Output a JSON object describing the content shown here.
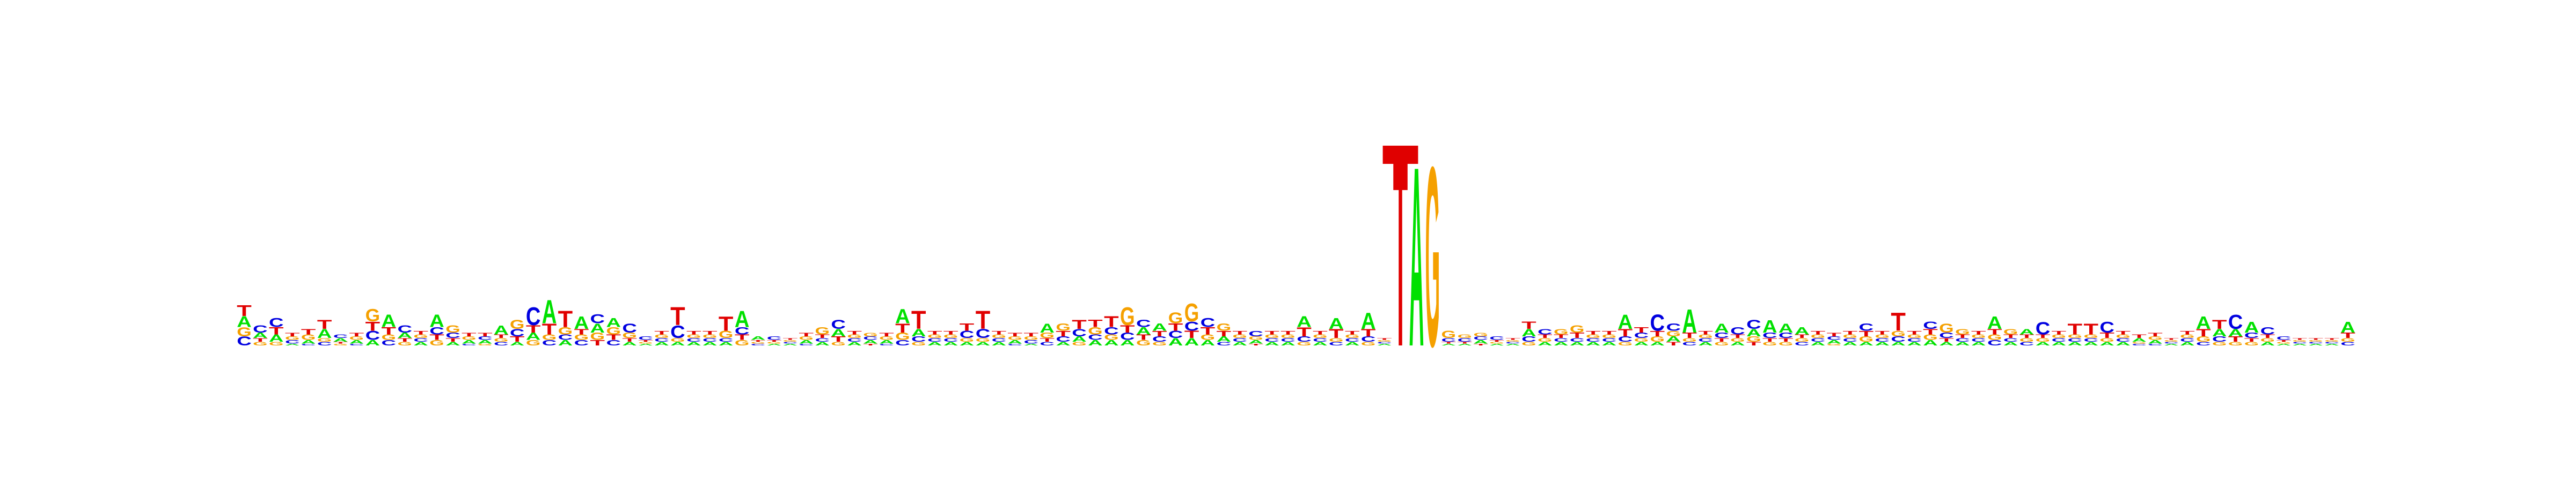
{
  "chart_data": {
    "type": "sequence_logo",
    "title": "",
    "xlabel": "",
    "ylabel": "",
    "alphabet": [
      "A",
      "C",
      "G",
      "T"
    ],
    "colors": {
      "A": "#00e000",
      "C": "#0000e0",
      "G": "#f5a000",
      "T": "#e00000"
    },
    "ylim_bits": [
      0,
      2
    ],
    "positions": [
      {
        "A": 0.06,
        "C": 0.05,
        "G": 0.05,
        "T": 0.06
      },
      {
        "A": 0.03,
        "C": 0.04,
        "G": 0.02,
        "T": 0.02
      },
      {
        "A": 0.04,
        "C": 0.05,
        "G": 0.02,
        "T": 0.04
      },
      {
        "A": 0.01,
        "C": 0.02,
        "G": 0.02,
        "T": 0.02
      },
      {
        "A": 0.02,
        "C": 0.01,
        "G": 0.03,
        "T": 0.03
      },
      {
        "A": 0.05,
        "C": 0.02,
        "G": 0.02,
        "T": 0.05
      },
      {
        "A": 0.02,
        "C": 0.02,
        "G": 0.01,
        "T": 0.01
      },
      {
        "A": 0.02,
        "C": 0.01,
        "G": 0.02,
        "T": 0.02
      },
      {
        "A": 0.03,
        "C": 0.05,
        "G": 0.07,
        "T": 0.05
      },
      {
        "A": 0.07,
        "C": 0.03,
        "G": 0.03,
        "T": 0.04
      },
      {
        "A": 0.03,
        "C": 0.04,
        "G": 0.02,
        "T": 0.02
      },
      {
        "A": 0.02,
        "C": 0.02,
        "G": 0.02,
        "T": 0.02
      },
      {
        "A": 0.07,
        "C": 0.04,
        "G": 0.03,
        "T": 0.03
      },
      {
        "A": 0.02,
        "C": 0.03,
        "G": 0.04,
        "T": 0.02
      },
      {
        "A": 0.02,
        "C": 0.01,
        "G": 0.02,
        "T": 0.02
      },
      {
        "A": 0.02,
        "C": 0.02,
        "G": 0.01,
        "T": 0.02
      },
      {
        "A": 0.05,
        "C": 0.02,
        "G": 0.02,
        "T": 0.02
      },
      {
        "A": 0.02,
        "C": 0.04,
        "G": 0.05,
        "T": 0.03
      },
      {
        "A": 0.04,
        "C": 0.1,
        "G": 0.03,
        "T": 0.04
      },
      {
        "A": 0.13,
        "C": 0.03,
        "G": 0.03,
        "T": 0.06
      },
      {
        "A": 0.03,
        "C": 0.03,
        "G": 0.04,
        "T": 0.09
      },
      {
        "A": 0.07,
        "C": 0.03,
        "G": 0.03,
        "T": 0.03
      },
      {
        "A": 0.05,
        "C": 0.05,
        "G": 0.04,
        "T": 0.03
      },
      {
        "A": 0.05,
        "C": 0.03,
        "G": 0.04,
        "T": 0.03
      },
      {
        "A": 0.02,
        "C": 0.05,
        "G": 0.03,
        "T": 0.02
      },
      {
        "A": 0.01,
        "C": 0.02,
        "G": 0.01,
        "T": 0.01
      },
      {
        "A": 0.02,
        "C": 0.02,
        "G": 0.02,
        "T": 0.02
      },
      {
        "A": 0.02,
        "C": 0.07,
        "G": 0.02,
        "T": 0.1
      },
      {
        "A": 0.02,
        "C": 0.02,
        "G": 0.02,
        "T": 0.02
      },
      {
        "A": 0.02,
        "C": 0.02,
        "G": 0.02,
        "T": 0.02
      },
      {
        "A": 0.02,
        "C": 0.02,
        "G": 0.04,
        "T": 0.08
      },
      {
        "A": 0.09,
        "C": 0.04,
        "G": 0.03,
        "T": 0.03
      },
      {
        "A": 0.02,
        "C": 0.01,
        "G": 0.01,
        "T": 0.01
      },
      {
        "A": 0.01,
        "C": 0.02,
        "G": 0.01,
        "T": 0.01
      },
      {
        "A": 0.01,
        "C": 0.01,
        "G": 0.01,
        "T": 0.01
      },
      {
        "A": 0.02,
        "C": 0.01,
        "G": 0.02,
        "T": 0.02
      },
      {
        "A": 0.02,
        "C": 0.02,
        "G": 0.04,
        "T": 0.02
      },
      {
        "A": 0.04,
        "C": 0.05,
        "G": 0.02,
        "T": 0.03
      },
      {
        "A": 0.02,
        "C": 0.02,
        "G": 0.02,
        "T": 0.02
      },
      {
        "A": 0.02,
        "C": 0.02,
        "G": 0.02,
        "T": 0.01
      },
      {
        "A": 0.02,
        "C": 0.01,
        "G": 0.02,
        "T": 0.02
      },
      {
        "A": 0.08,
        "C": 0.03,
        "G": 0.04,
        "T": 0.05
      },
      {
        "A": 0.04,
        "C": 0.03,
        "G": 0.02,
        "T": 0.1
      },
      {
        "A": 0.02,
        "C": 0.02,
        "G": 0.02,
        "T": 0.02
      },
      {
        "A": 0.02,
        "C": 0.02,
        "G": 0.02,
        "T": 0.02
      },
      {
        "A": 0.02,
        "C": 0.04,
        "G": 0.02,
        "T": 0.04
      },
      {
        "A": 0.02,
        "C": 0.05,
        "G": 0.02,
        "T": 0.1
      },
      {
        "A": 0.02,
        "C": 0.02,
        "G": 0.02,
        "T": 0.02
      },
      {
        "A": 0.02,
        "C": 0.01,
        "G": 0.02,
        "T": 0.02
      },
      {
        "A": 0.01,
        "C": 0.02,
        "G": 0.02,
        "T": 0.02
      },
      {
        "A": 0.05,
        "C": 0.02,
        "G": 0.03,
        "T": 0.02
      },
      {
        "A": 0.02,
        "C": 0.03,
        "G": 0.04,
        "T": 0.03
      },
      {
        "A": 0.03,
        "C": 0.04,
        "G": 0.02,
        "T": 0.05
      },
      {
        "A": 0.03,
        "C": 0.03,
        "G": 0.04,
        "T": 0.04
      },
      {
        "A": 0.03,
        "C": 0.04,
        "G": 0.03,
        "T": 0.06
      },
      {
        "A": 0.03,
        "C": 0.04,
        "G": 0.1,
        "T": 0.04
      },
      {
        "A": 0.04,
        "C": 0.04,
        "G": 0.03,
        "T": 0.03
      },
      {
        "A": 0.04,
        "C": 0.03,
        "G": 0.02,
        "T": 0.03
      },
      {
        "A": 0.04,
        "C": 0.04,
        "G": 0.06,
        "T": 0.04
      },
      {
        "A": 0.04,
        "C": 0.05,
        "G": 0.1,
        "T": 0.04
      },
      {
        "A": 0.03,
        "C": 0.05,
        "G": 0.03,
        "T": 0.04
      },
      {
        "A": 0.03,
        "C": 0.02,
        "G": 0.04,
        "T": 0.03
      },
      {
        "A": 0.02,
        "C": 0.02,
        "G": 0.02,
        "T": 0.02
      },
      {
        "A": 0.02,
        "C": 0.03,
        "G": 0.02,
        "T": 0.01
      },
      {
        "A": 0.02,
        "C": 0.02,
        "G": 0.02,
        "T": 0.02
      },
      {
        "A": 0.02,
        "C": 0.02,
        "G": 0.02,
        "T": 0.02
      },
      {
        "A": 0.06,
        "C": 0.03,
        "G": 0.02,
        "T": 0.05
      },
      {
        "A": 0.02,
        "C": 0.02,
        "G": 0.02,
        "T": 0.02
      },
      {
        "A": 0.06,
        "C": 0.02,
        "G": 0.02,
        "T": 0.05
      },
      {
        "A": 0.02,
        "C": 0.02,
        "G": 0.02,
        "T": 0.02
      },
      {
        "A": 0.09,
        "C": 0.03,
        "G": 0.02,
        "T": 0.04
      },
      {
        "A": 0.01,
        "C": 0.01,
        "G": 0.01,
        "T": 0.01
      },
      {
        "A": 0.0,
        "C": 0.0,
        "G": 0.0,
        "T": 1.05
      },
      {
        "A": 1.0,
        "C": 0.0,
        "G": 0.0,
        "T": 0.0
      },
      {
        "A": 0.0,
        "C": 0.0,
        "G": 1.0,
        "T": 0.0
      },
      {
        "A": 0.01,
        "C": 0.02,
        "G": 0.04,
        "T": 0.01
      },
      {
        "A": 0.01,
        "C": 0.02,
        "G": 0.02,
        "T": 0.01
      },
      {
        "A": 0.02,
        "C": 0.02,
        "G": 0.02,
        "T": 0.01
      },
      {
        "A": 0.01,
        "C": 0.02,
        "G": 0.01,
        "T": 0.01
      },
      {
        "A": 0.01,
        "C": 0.01,
        "G": 0.01,
        "T": 0.01
      },
      {
        "A": 0.04,
        "C": 0.03,
        "G": 0.02,
        "T": 0.04
      },
      {
        "A": 0.02,
        "C": 0.03,
        "G": 0.02,
        "T": 0.02
      },
      {
        "A": 0.02,
        "C": 0.02,
        "G": 0.03,
        "T": 0.02
      },
      {
        "A": 0.02,
        "C": 0.02,
        "G": 0.04,
        "T": 0.03
      },
      {
        "A": 0.02,
        "C": 0.02,
        "G": 0.02,
        "T": 0.02
      },
      {
        "A": 0.02,
        "C": 0.02,
        "G": 0.02,
        "T": 0.02
      },
      {
        "A": 0.08,
        "C": 0.03,
        "G": 0.02,
        "T": 0.04
      },
      {
        "A": 0.02,
        "C": 0.03,
        "G": 0.02,
        "T": 0.03
      },
      {
        "A": 0.02,
        "C": 0.09,
        "G": 0.03,
        "T": 0.03
      },
      {
        "A": 0.03,
        "C": 0.04,
        "G": 0.03,
        "T": 0.02
      },
      {
        "A": 0.13,
        "C": 0.02,
        "G": 0.02,
        "T": 0.03
      },
      {
        "A": 0.02,
        "C": 0.02,
        "G": 0.02,
        "T": 0.02
      },
      {
        "A": 0.05,
        "C": 0.03,
        "G": 0.02,
        "T": 0.02
      },
      {
        "A": 0.02,
        "C": 0.04,
        "G": 0.02,
        "T": 0.02
      },
      {
        "A": 0.04,
        "C": 0.05,
        "G": 0.03,
        "T": 0.02
      },
      {
        "A": 0.07,
        "C": 0.03,
        "G": 0.02,
        "T": 0.02
      },
      {
        "A": 0.05,
        "C": 0.03,
        "G": 0.02,
        "T": 0.02
      },
      {
        "A": 0.04,
        "C": 0.02,
        "G": 0.02,
        "T": 0.02
      },
      {
        "A": 0.02,
        "C": 0.02,
        "G": 0.02,
        "T": 0.02
      },
      {
        "A": 0.02,
        "C": 0.02,
        "G": 0.01,
        "T": 0.02
      },
      {
        "A": 0.02,
        "C": 0.02,
        "G": 0.02,
        "T": 0.02
      },
      {
        "A": 0.02,
        "C": 0.04,
        "G": 0.03,
        "T": 0.03
      },
      {
        "A": 0.02,
        "C": 0.02,
        "G": 0.02,
        "T": 0.02
      },
      {
        "A": 0.02,
        "C": 0.03,
        "G": 0.03,
        "T": 0.1
      },
      {
        "A": 0.02,
        "C": 0.02,
        "G": 0.02,
        "T": 0.02
      },
      {
        "A": 0.03,
        "C": 0.04,
        "G": 0.03,
        "T": 0.03
      },
      {
        "A": 0.02,
        "C": 0.03,
        "G": 0.05,
        "T": 0.02
      },
      {
        "A": 0.02,
        "C": 0.02,
        "G": 0.03,
        "T": 0.02
      },
      {
        "A": 0.02,
        "C": 0.02,
        "G": 0.02,
        "T": 0.02
      },
      {
        "A": 0.07,
        "C": 0.03,
        "G": 0.03,
        "T": 0.03
      },
      {
        "A": 0.02,
        "C": 0.02,
        "G": 0.03,
        "T": 0.02
      },
      {
        "A": 0.03,
        "C": 0.02,
        "G": 0.02,
        "T": 0.02
      },
      {
        "A": 0.02,
        "C": 0.07,
        "G": 0.02,
        "T": 0.02
      },
      {
        "A": 0.02,
        "C": 0.02,
        "G": 0.02,
        "T": 0.02
      },
      {
        "A": 0.02,
        "C": 0.02,
        "G": 0.02,
        "T": 0.06
      },
      {
        "A": 0.02,
        "C": 0.02,
        "G": 0.02,
        "T": 0.06
      },
      {
        "A": 0.02,
        "C": 0.06,
        "G": 0.02,
        "T": 0.03
      },
      {
        "A": 0.02,
        "C": 0.02,
        "G": 0.02,
        "T": 0.02
      },
      {
        "A": 0.02,
        "C": 0.01,
        "G": 0.01,
        "T": 0.02
      },
      {
        "A": 0.02,
        "C": 0.01,
        "G": 0.02,
        "T": 0.02
      },
      {
        "A": 0.01,
        "C": 0.01,
        "G": 0.01,
        "T": 0.01
      },
      {
        "A": 0.02,
        "C": 0.02,
        "G": 0.02,
        "T": 0.02
      },
      {
        "A": 0.07,
        "C": 0.02,
        "G": 0.03,
        "T": 0.04
      },
      {
        "A": 0.04,
        "C": 0.03,
        "G": 0.02,
        "T": 0.05
      },
      {
        "A": 0.04,
        "C": 0.08,
        "G": 0.02,
        "T": 0.03
      },
      {
        "A": 0.06,
        "C": 0.03,
        "G": 0.02,
        "T": 0.02
      },
      {
        "A": 0.02,
        "C": 0.04,
        "G": 0.02,
        "T": 0.02
      },
      {
        "A": 0.01,
        "C": 0.02,
        "G": 0.01,
        "T": 0.01
      },
      {
        "A": 0.01,
        "C": 0.01,
        "G": 0.01,
        "T": 0.01
      },
      {
        "A": 0.01,
        "C": 0.01,
        "G": 0.01,
        "T": 0.01
      },
      {
        "A": 0.01,
        "C": 0.01,
        "G": 0.01,
        "T": 0.01
      },
      {
        "A": 0.06,
        "C": 0.02,
        "G": 0.02,
        "T": 0.03
      }
    ]
  }
}
